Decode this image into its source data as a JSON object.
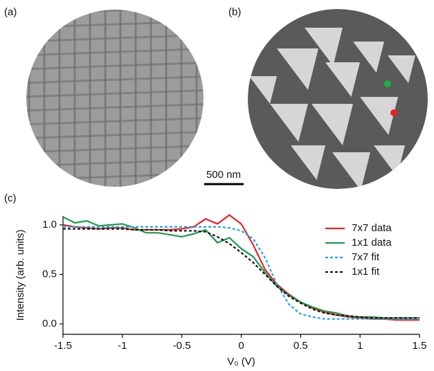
{
  "panels": {
    "a": "(a)",
    "b": "(b)",
    "c": "(c)"
  },
  "scale_bar": "500 nm",
  "chart_data": {
    "type": "line",
    "xlabel": "V₀ (V)",
    "ylabel": "Intensity (arb. units)",
    "xlim": [
      -1.5,
      1.5
    ],
    "ylim": [
      -0.105,
      1.09
    ],
    "xticks": [
      -1.5,
      -1,
      -0.5,
      0,
      0.5,
      1,
      1.5
    ],
    "yticks": [
      {
        "value": 0,
        "label": "0.0"
      },
      0.5,
      {
        "value": 1,
        "label": "1.0"
      }
    ],
    "legend": "upper right",
    "x": [
      -1.5,
      -1.4,
      -1.3,
      -1.2,
      -1.1,
      -1.0,
      -0.9,
      -0.8,
      -0.7,
      -0.6,
      -0.5,
      -0.4,
      -0.3,
      -0.2,
      -0.1,
      0.0,
      0.1,
      0.2,
      0.3,
      0.4,
      0.5,
      0.6,
      0.7,
      0.8,
      0.9,
      1.0,
      1.1,
      1.2,
      1.3,
      1.4,
      1.5
    ],
    "series": [
      {
        "name": "7x7 data",
        "color": "#e8212a",
        "style": "solid",
        "values": [
          1.0,
          0.98,
          0.97,
          0.96,
          0.97,
          0.97,
          0.95,
          0.95,
          0.95,
          0.95,
          0.96,
          0.98,
          1.06,
          1.01,
          1.1,
          1.01,
          0.8,
          0.55,
          0.4,
          0.3,
          0.22,
          0.16,
          0.12,
          0.09,
          0.07,
          0.06,
          0.05,
          0.05,
          0.04,
          0.04,
          0.04
        ]
      },
      {
        "name": "1x1 data",
        "color": "#1a9a48",
        "style": "solid",
        "values": [
          1.08,
          1.02,
          1.04,
          0.99,
          1.0,
          1.01,
          0.97,
          0.92,
          0.92,
          0.9,
          0.88,
          0.91,
          0.95,
          0.82,
          0.87,
          0.76,
          0.68,
          0.52,
          0.38,
          0.29,
          0.22,
          0.17,
          0.13,
          0.11,
          0.08,
          0.07,
          0.07,
          0.06,
          0.06,
          0.06,
          0.06
        ]
      },
      {
        "name": "7x7 fit",
        "color": "#1aa6e0",
        "style": "dashed",
        "values": [
          0.98,
          0.98,
          0.98,
          0.98,
          0.98,
          0.98,
          0.98,
          0.98,
          0.98,
          0.98,
          0.98,
          0.98,
          0.98,
          0.98,
          0.97,
          0.94,
          0.86,
          0.67,
          0.4,
          0.2,
          0.1,
          0.07,
          0.05,
          0.05,
          0.05,
          0.05,
          0.05,
          0.05,
          0.05,
          0.05,
          0.05
        ]
      },
      {
        "name": "1x1 fit",
        "color": "#111111",
        "style": "dashed",
        "values": [
          0.96,
          0.96,
          0.96,
          0.96,
          0.96,
          0.96,
          0.95,
          0.95,
          0.95,
          0.94,
          0.94,
          0.94,
          0.93,
          0.88,
          0.81,
          0.72,
          0.62,
          0.5,
          0.38,
          0.28,
          0.21,
          0.15,
          0.11,
          0.09,
          0.08,
          0.07,
          0.06,
          0.06,
          0.06,
          0.06,
          0.06
        ]
      }
    ]
  }
}
